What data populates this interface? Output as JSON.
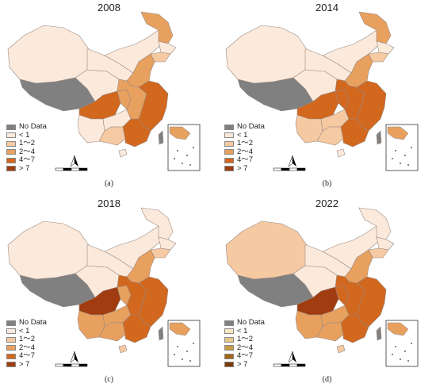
{
  "panels": [
    {
      "year": "2008",
      "caption": "(a)",
      "legend_colors": [
        "#808080",
        "#fbe9dc",
        "#f5c9a2",
        "#e8a05e",
        "#d2671e",
        "#a03c0f"
      ],
      "fills": {
        "xinjiang": "#fbe9dc",
        "tibet": "#808080",
        "qinghai": "#fbe9dc",
        "gansu": "#fbe9dc",
        "inner_mongolia": "#fbe9dc",
        "heilongjiang": "#e8a05e",
        "jilin": "#fbe9dc",
        "liaoning": "#f5c9a2",
        "north": "#e8a05e",
        "sichuan": "#d2671e",
        "chongqing": "#e8a05e",
        "yunnan": "#fbe9dc",
        "guizhou": "#fbe9dc",
        "central": "#e8a05e",
        "east": "#d2671e",
        "guangxi": "#f5c9a2",
        "guangdong": "#d2671e",
        "hainan": "#fbe9dc",
        "taiwan": "#808080"
      }
    },
    {
      "year": "2014",
      "caption": "(b)",
      "legend_colors": [
        "#808080",
        "#fbe9dc",
        "#f5c9a2",
        "#e8a05e",
        "#d2671e",
        "#a03c0f"
      ],
      "fills": {
        "xinjiang": "#fbe9dc",
        "tibet": "#808080",
        "qinghai": "#fbe9dc",
        "gansu": "#fbe9dc",
        "inner_mongolia": "#fbe9dc",
        "heilongjiang": "#e8a05e",
        "jilin": "#fbe9dc",
        "liaoning": "#f5c9a2",
        "north": "#e8a05e",
        "sichuan": "#d2671e",
        "chongqing": "#d2671e",
        "yunnan": "#f5c9a2",
        "guizhou": "#f5c9a2",
        "central": "#d2671e",
        "east": "#d2671e",
        "guangxi": "#f5c9a2",
        "guangdong": "#d2671e",
        "hainan": "#fbe9dc",
        "taiwan": "#808080"
      }
    },
    {
      "year": "2018",
      "caption": "(c)",
      "legend_colors": [
        "#808080",
        "#fbe9dc",
        "#f5c9a2",
        "#e8a05e",
        "#d2671e",
        "#a03c0f"
      ],
      "fills": {
        "xinjiang": "#fbe9dc",
        "tibet": "#808080",
        "qinghai": "#fbe9dc",
        "gansu": "#fbe9dc",
        "inner_mongolia": "#fbe9dc",
        "heilongjiang": "#fbe9dc",
        "jilin": "#fbe9dc",
        "liaoning": "#f5c9a2",
        "north": "#e8a05e",
        "sichuan": "#a03c0f",
        "chongqing": "#e8a05e",
        "yunnan": "#e8a05e",
        "guizhou": "#e8a05e",
        "central": "#d2671e",
        "east": "#d2671e",
        "guangxi": "#e8a05e",
        "guangdong": "#d2671e",
        "hainan": "#f5c9a2",
        "taiwan": "#808080"
      }
    },
    {
      "year": "2022",
      "caption": "(d)",
      "legend_colors": [
        "#808080",
        "#f7e6c2",
        "#e6c78a",
        "#c99a4a",
        "#a5651c",
        "#7a3a0a"
      ],
      "fills": {
        "xinjiang": "#f5c9a2",
        "tibet": "#808080",
        "qinghai": "#fbe9dc",
        "gansu": "#fbe9dc",
        "inner_mongolia": "#fbe9dc",
        "heilongjiang": "#fbe9dc",
        "jilin": "#fbe9dc",
        "liaoning": "#f5c9a2",
        "north": "#e8a05e",
        "sichuan": "#a03c0f",
        "chongqing": "#d2671e",
        "yunnan": "#e8a05e",
        "guizhou": "#e8a05e",
        "central": "#d2671e",
        "east": "#d2671e",
        "guangxi": "#e8a05e",
        "guangdong": "#d2671e",
        "hainan": "#f5c9a2",
        "taiwan": "#808080"
      }
    }
  ],
  "legend_labels": [
    "No Data",
    "< 1",
    "1～2",
    "2～4",
    "4～7",
    "> 7"
  ]
}
